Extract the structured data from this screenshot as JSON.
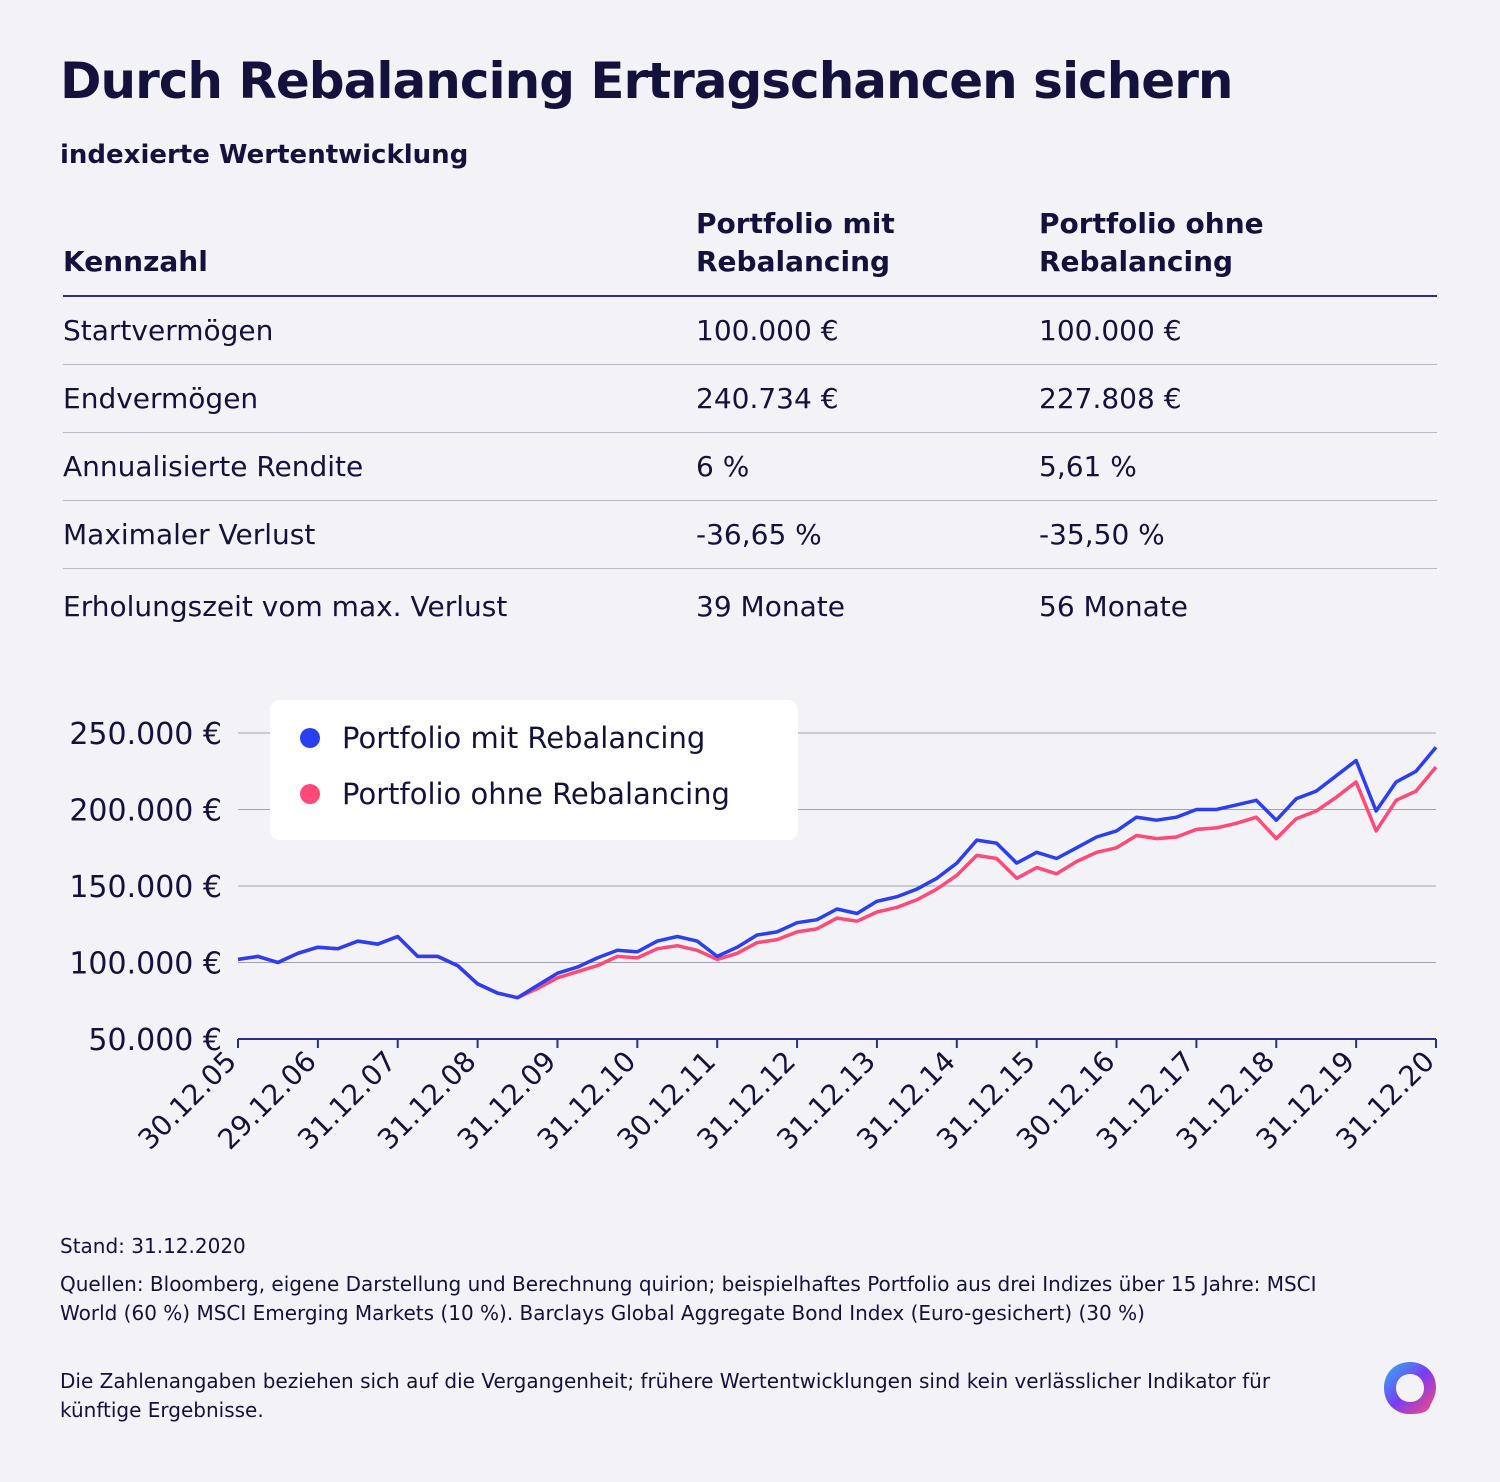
{
  "header": {
    "title": "Durch Rebalancing Ertragschancen sichern",
    "subtitle": "indexierte Wertentwicklung"
  },
  "table": {
    "headers": [
      "Kennzahl",
      "Portfolio mit\nRebalancing",
      "Portfolio ohne\nRebalancing"
    ],
    "rows": [
      [
        "Startvermögen",
        "100.000 €",
        "100.000 €"
      ],
      [
        "Endvermögen",
        "240.734 €",
        "227.808 €"
      ],
      [
        "Annualisierte Rendite",
        "6 %",
        "5,61 %"
      ],
      [
        "Maximaler Verlust",
        "-36,65 %",
        "-35,50 %"
      ],
      [
        "Erholungszeit vom max. Verlust",
        "39 Monate",
        "56 Monate"
      ]
    ]
  },
  "colors": {
    "text": "#15113d",
    "blue": "#2b3ff2",
    "pink": "#ff4a78",
    "grid": "#a3a2b4",
    "axis": "#2b2d8f"
  },
  "chart_data": {
    "type": "line",
    "x_range": [
      "30.12.05",
      "31.12.20"
    ],
    "ylim": [
      50000,
      250000
    ],
    "y_ticks": [
      50000,
      100000,
      150000,
      200000,
      250000
    ],
    "y_tick_labels": [
      "50.000 €",
      "100.000 €",
      "150.000 €",
      "200.000 €",
      "250.000 €"
    ],
    "x_tick_labels": [
      "30.12.05",
      "29.12.06",
      "31.12.07",
      "31.12.08",
      "31.12.09",
      "31.12.10",
      "30.12.11",
      "31.12.12",
      "31.12.13",
      "31.12.14",
      "31.12.15",
      "30.12.16",
      "31.12.17",
      "31.12.18",
      "31.12.19",
      "31.12.20"
    ],
    "grid": "horizontal",
    "legend_position": "top-left",
    "series": [
      {
        "name": "Portfolio mit Rebalancing",
        "color": "#2b3ff2",
        "points": [
          [
            2006.0,
            102000
          ],
          [
            2006.25,
            104000
          ],
          [
            2006.5,
            100000
          ],
          [
            2006.75,
            106000
          ],
          [
            2007.0,
            110000
          ],
          [
            2007.25,
            109000
          ],
          [
            2007.5,
            114000
          ],
          [
            2007.75,
            112000
          ],
          [
            2008.0,
            117000
          ],
          [
            2008.25,
            104000
          ],
          [
            2008.5,
            104000
          ],
          [
            2008.75,
            98000
          ],
          [
            2009.0,
            86000
          ],
          [
            2009.25,
            80000
          ],
          [
            2009.5,
            77000
          ],
          [
            2009.75,
            85000
          ],
          [
            2010.0,
            93000
          ],
          [
            2010.25,
            97000
          ],
          [
            2010.5,
            103000
          ],
          [
            2010.75,
            108000
          ],
          [
            2011.0,
            107000
          ],
          [
            2011.25,
            114000
          ],
          [
            2011.5,
            117000
          ],
          [
            2011.75,
            114000
          ],
          [
            2012.0,
            104000
          ],
          [
            2012.25,
            110000
          ],
          [
            2012.5,
            118000
          ],
          [
            2012.75,
            120000
          ],
          [
            2013.0,
            126000
          ],
          [
            2013.25,
            128000
          ],
          [
            2013.5,
            135000
          ],
          [
            2013.75,
            132000
          ],
          [
            2014.0,
            140000
          ],
          [
            2014.25,
            143000
          ],
          [
            2014.5,
            148000
          ],
          [
            2014.75,
            155000
          ],
          [
            2015.0,
            165000
          ],
          [
            2015.25,
            180000
          ],
          [
            2015.5,
            178000
          ],
          [
            2015.75,
            165000
          ],
          [
            2016.0,
            172000
          ],
          [
            2016.25,
            168000
          ],
          [
            2016.5,
            175000
          ],
          [
            2016.75,
            182000
          ],
          [
            2017.0,
            186000
          ],
          [
            2017.25,
            195000
          ],
          [
            2017.5,
            193000
          ],
          [
            2017.75,
            195000
          ],
          [
            2018.0,
            200000
          ],
          [
            2018.25,
            200000
          ],
          [
            2018.5,
            203000
          ],
          [
            2018.75,
            206000
          ],
          [
            2019.0,
            193000
          ],
          [
            2019.25,
            207000
          ],
          [
            2019.5,
            212000
          ],
          [
            2019.75,
            222000
          ],
          [
            2020.0,
            232000
          ],
          [
            2020.25,
            199000
          ],
          [
            2020.5,
            218000
          ],
          [
            2020.75,
            225000
          ],
          [
            2021.0,
            240734
          ]
        ]
      },
      {
        "name": "Portfolio ohne Rebalancing",
        "color": "#ff4a78",
        "points": [
          [
            2006.0,
            102000
          ],
          [
            2006.25,
            104000
          ],
          [
            2006.5,
            100000
          ],
          [
            2006.75,
            106000
          ],
          [
            2007.0,
            110000
          ],
          [
            2007.25,
            109000
          ],
          [
            2007.5,
            114000
          ],
          [
            2007.75,
            112000
          ],
          [
            2008.0,
            117000
          ],
          [
            2008.25,
            104000
          ],
          [
            2008.5,
            104000
          ],
          [
            2008.75,
            98000
          ],
          [
            2009.0,
            86000
          ],
          [
            2009.25,
            80000
          ],
          [
            2009.5,
            77000
          ],
          [
            2009.75,
            83000
          ],
          [
            2010.0,
            90000
          ],
          [
            2010.25,
            94000
          ],
          [
            2010.5,
            98000
          ],
          [
            2010.75,
            104000
          ],
          [
            2011.0,
            103000
          ],
          [
            2011.25,
            109000
          ],
          [
            2011.5,
            111000
          ],
          [
            2011.75,
            108000
          ],
          [
            2012.0,
            102000
          ],
          [
            2012.25,
            106000
          ],
          [
            2012.5,
            113000
          ],
          [
            2012.75,
            115000
          ],
          [
            2013.0,
            120000
          ],
          [
            2013.25,
            122000
          ],
          [
            2013.5,
            129000
          ],
          [
            2013.75,
            127000
          ],
          [
            2014.0,
            133000
          ],
          [
            2014.25,
            136000
          ],
          [
            2014.5,
            141000
          ],
          [
            2014.75,
            148000
          ],
          [
            2015.0,
            157000
          ],
          [
            2015.25,
            170000
          ],
          [
            2015.5,
            168000
          ],
          [
            2015.75,
            155000
          ],
          [
            2016.0,
            162000
          ],
          [
            2016.25,
            158000
          ],
          [
            2016.5,
            166000
          ],
          [
            2016.75,
            172000
          ],
          [
            2017.0,
            175000
          ],
          [
            2017.25,
            183000
          ],
          [
            2017.5,
            181000
          ],
          [
            2017.75,
            182000
          ],
          [
            2018.0,
            187000
          ],
          [
            2018.25,
            188000
          ],
          [
            2018.5,
            191000
          ],
          [
            2018.75,
            195000
          ],
          [
            2019.0,
            181000
          ],
          [
            2019.25,
            194000
          ],
          [
            2019.5,
            199000
          ],
          [
            2019.75,
            208000
          ],
          [
            2020.0,
            218000
          ],
          [
            2020.25,
            186000
          ],
          [
            2020.5,
            206000
          ],
          [
            2020.75,
            212000
          ],
          [
            2021.0,
            227808
          ]
        ]
      }
    ]
  },
  "footer": {
    "stand": "Stand: 31.12.2020",
    "sources": "Quellen: Bloomberg, eigene Darstellung und Berechnung quirion; beispielhaftes Portfolio aus drei Indizes über 15 Jahre: MSCI World (60 %) MSCI Emerging Markets (10 %). Barclays Global Aggregate Bond Index (Euro-gesichert) (30 %)",
    "disclaimer": "Die Zahlenangaben beziehen sich auf die Vergangenheit; frühere Wertentwicklungen sind kein verlässlicher Indikator für künftige Ergebnisse."
  }
}
